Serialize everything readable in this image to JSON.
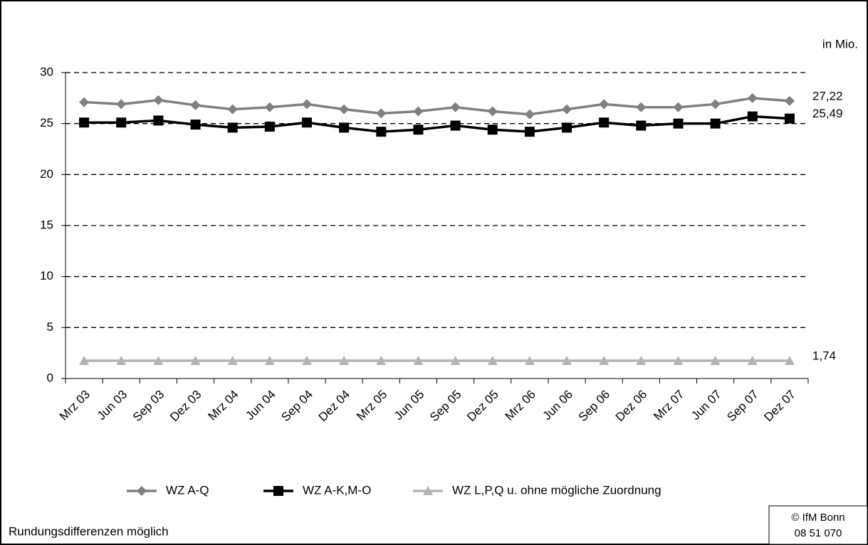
{
  "chart_data": {
    "type": "line",
    "unit_label": "in Mio.",
    "categories": [
      "Mrz 03",
      "Jun 03",
      "Sep 03",
      "Dez 03",
      "Mrz 04",
      "Jun 04",
      "Sep 04",
      "Dez 04",
      "Mrz 05",
      "Jun 05",
      "Sep 05",
      "Dez 05",
      "Mrz 06",
      "Jun 06",
      "Sep 06",
      "Dez 06",
      "Mrz 07",
      "Jun 07",
      "Sep 07",
      "Dez 07"
    ],
    "series": [
      {
        "name": "WZ A-Q",
        "color": "#808080",
        "marker": "diamond",
        "values": [
          27.1,
          26.9,
          27.3,
          26.8,
          26.4,
          26.6,
          26.9,
          26.4,
          26.0,
          26.2,
          26.6,
          26.2,
          25.9,
          26.4,
          26.9,
          26.6,
          26.6,
          26.9,
          27.5,
          27.22
        ],
        "value_labels": [
          null,
          null,
          null,
          null,
          null,
          null,
          null,
          null,
          null,
          null,
          null,
          null,
          null,
          null,
          null,
          null,
          null,
          null,
          null,
          "27,22"
        ]
      },
      {
        "name": "WZ A-K,M-O",
        "color": "#000000",
        "marker": "square",
        "values": [
          25.1,
          25.1,
          25.3,
          24.9,
          24.6,
          24.7,
          25.1,
          24.6,
          24.2,
          24.4,
          24.8,
          24.4,
          24.2,
          24.6,
          25.1,
          24.8,
          25.0,
          25.0,
          25.7,
          25.49
        ],
        "value_labels": [
          null,
          null,
          null,
          null,
          null,
          null,
          null,
          null,
          null,
          null,
          null,
          null,
          null,
          null,
          null,
          null,
          null,
          null,
          null,
          "25,49"
        ]
      },
      {
        "name": "WZ L,P,Q u. ohne mögliche Zuordnung",
        "color": "#b3b3b3",
        "marker": "triangle",
        "values": [
          1.74,
          1.74,
          1.74,
          1.74,
          1.74,
          1.74,
          1.74,
          1.74,
          1.74,
          1.74,
          1.74,
          1.74,
          1.74,
          1.74,
          1.74,
          1.74,
          1.74,
          1.74,
          1.74,
          1.74
        ],
        "value_labels": [
          null,
          null,
          null,
          null,
          null,
          null,
          null,
          null,
          null,
          null,
          null,
          null,
          null,
          null,
          null,
          null,
          null,
          null,
          null,
          "1,74"
        ]
      }
    ],
    "ylim": [
      0,
      30
    ],
    "yticks": [
      0,
      5,
      10,
      15,
      20,
      25,
      30
    ],
    "grid": true,
    "legend": "bottom",
    "footnote": "Rundungsdifferenzen möglich",
    "source": [
      "© IfM Bonn",
      "08  51  070"
    ]
  }
}
